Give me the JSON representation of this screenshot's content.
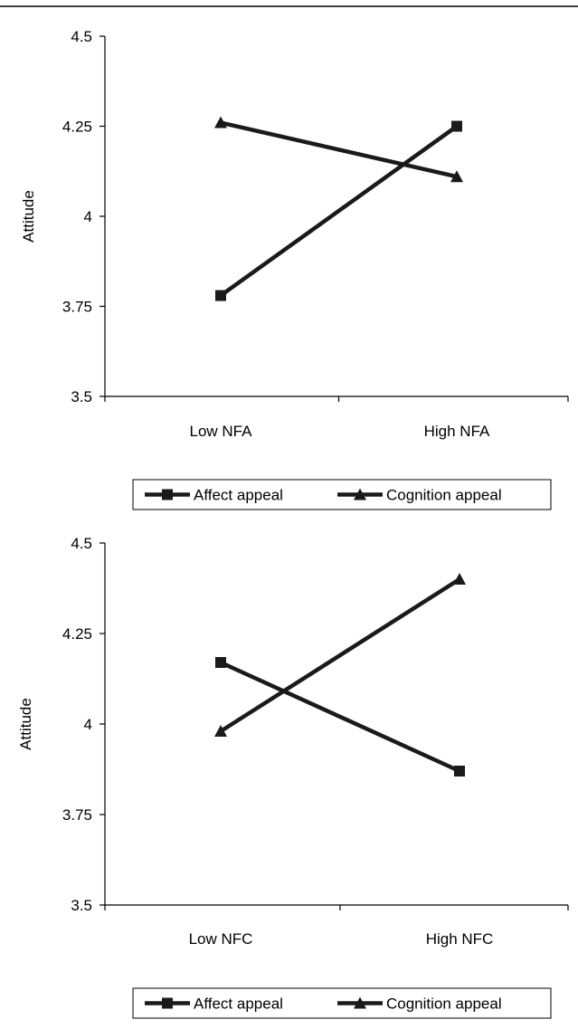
{
  "chart_data": [
    {
      "type": "line",
      "categories": [
        "Low NFA",
        "High NFA"
      ],
      "series": [
        {
          "name": "Affect appeal",
          "marker": "square",
          "values": [
            3.78,
            4.25
          ]
        },
        {
          "name": "Cognition appeal",
          "marker": "triangle",
          "values": [
            4.26,
            4.11
          ]
        }
      ],
      "ylabel": "Attitude",
      "ylim": [
        3.5,
        4.5
      ],
      "yticks": [
        "3.5",
        "3.75",
        "4",
        "4.25",
        "4.5"
      ],
      "grid": false,
      "legend": "bottom"
    },
    {
      "type": "line",
      "categories": [
        "Low NFC",
        "High NFC"
      ],
      "series": [
        {
          "name": "Affect appeal",
          "marker": "square",
          "values": [
            4.17,
            3.87
          ]
        },
        {
          "name": "Cognition appeal",
          "marker": "triangle",
          "values": [
            3.98,
            4.4
          ]
        }
      ],
      "ylabel": "Attitude",
      "ylim": [
        3.5,
        4.5
      ],
      "yticks": [
        "3.5",
        "3.75",
        "4",
        "4.25",
        "4.5"
      ],
      "grid": false,
      "legend": "bottom"
    }
  ],
  "colors": {
    "line": "#1a1a1a",
    "axis": "#000000"
  }
}
